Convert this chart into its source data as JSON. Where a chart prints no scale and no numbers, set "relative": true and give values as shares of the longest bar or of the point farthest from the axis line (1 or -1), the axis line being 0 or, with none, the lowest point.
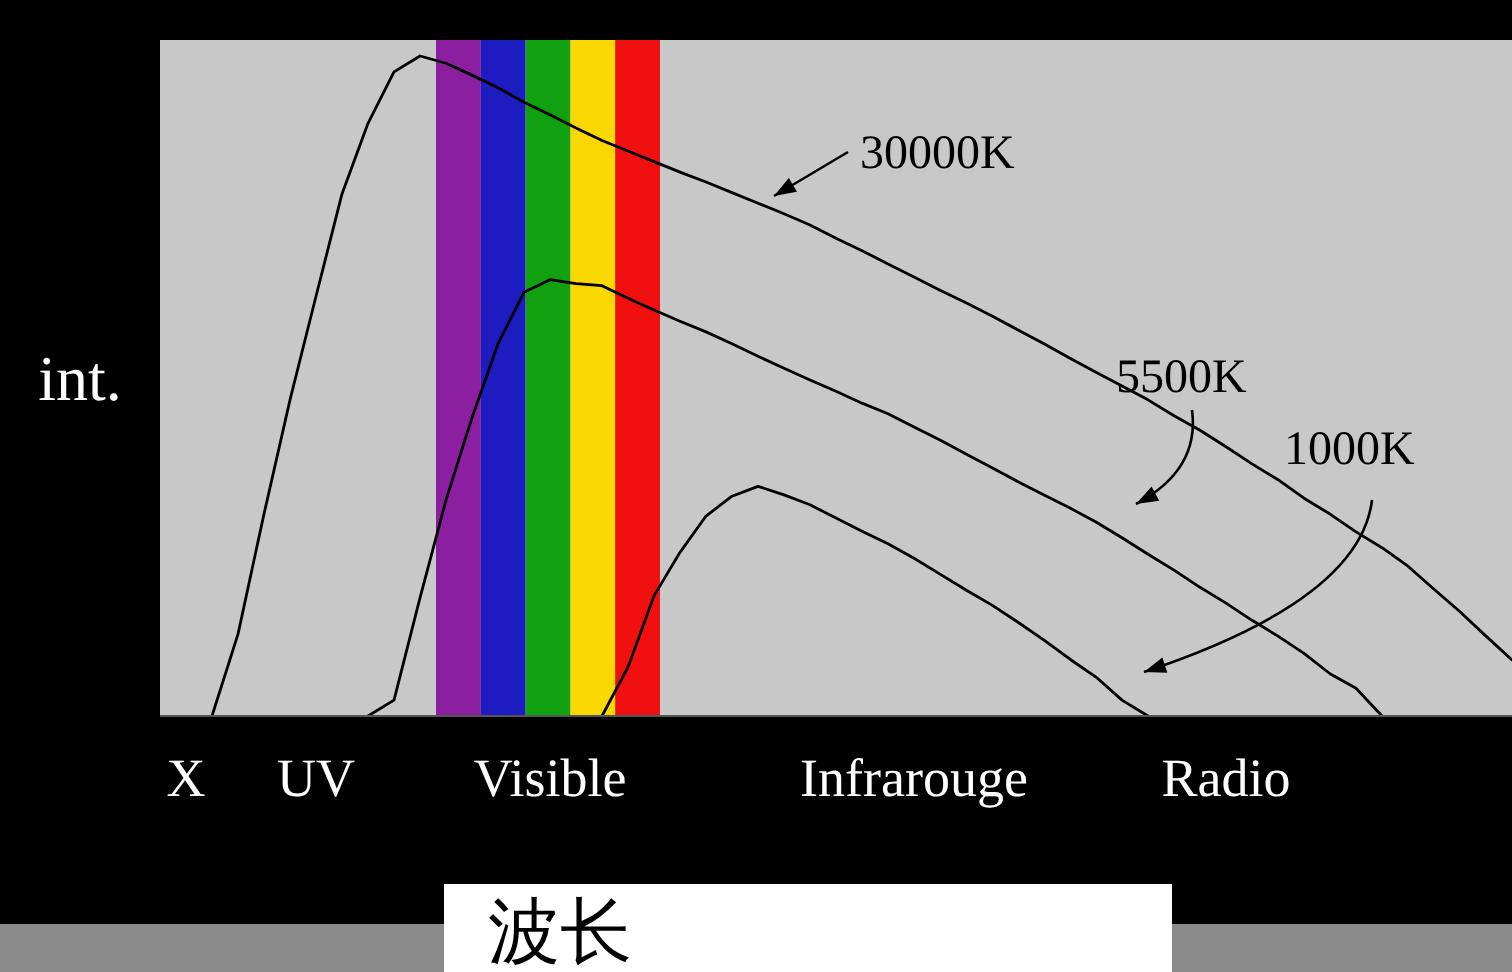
{
  "chart_data": {
    "type": "line",
    "relative": true,
    "xlabel": "波长",
    "ylabel": "int.",
    "categories": [
      null,
      "X",
      null,
      null,
      null,
      null,
      "UV",
      null,
      null,
      null,
      null,
      null,
      null,
      null,
      null,
      "Visible",
      null,
      null,
      null,
      null,
      null,
      null,
      null,
      null,
      null,
      null,
      null,
      null,
      null,
      "Infrarouge",
      null,
      null,
      null,
      null,
      null,
      null,
      null,
      null,
      null,
      null,
      null,
      "Radio",
      null,
      null,
      null,
      null,
      null,
      null,
      null,
      null,
      null,
      null,
      null
    ],
    "series": [
      {
        "color": "#000000",
        "values": [
          null,
          null,
          0,
          0.124,
          0.306,
          0.479,
          0.636,
          0.791,
          0.898,
          0.976,
          1,
          0.989,
          0.971,
          0.952,
          0.93,
          0.911,
          0.891,
          0.872,
          0.856,
          0.84,
          0.824,
          0.809,
          0.793,
          0.777,
          0.761,
          0.744,
          0.724,
          0.705,
          0.685,
          0.665,
          0.645,
          0.626,
          0.606,
          0.585,
          0.564,
          0.542,
          0.521,
          0.5,
          0.479,
          0.455,
          0.433,
          0.408,
          0.382,
          0.358,
          0.33,
          0.306,
          0.279,
          0.255,
          0.227,
          0.192,
          0.158,
          0.121,
          0.085
        ]
      },
      {
        "color": "#000000",
        "values": [
          null,
          null,
          null,
          null,
          null,
          null,
          null,
          null,
          0,
          0.024,
          0.179,
          0.327,
          0.452,
          0.564,
          0.642,
          0.661,
          0.655,
          0.652,
          0.633,
          0.615,
          0.598,
          0.582,
          0.564,
          0.545,
          0.527,
          0.509,
          0.492,
          0.474,
          0.458,
          0.438,
          0.418,
          0.397,
          0.376,
          0.355,
          0.335,
          0.315,
          0.294,
          0.27,
          0.245,
          0.221,
          0.195,
          0.171,
          0.145,
          0.121,
          0.095,
          0.064,
          0.042,
          0,
          null,
          null,
          null,
          null,
          null
        ]
      },
      {
        "color": "#000000",
        "values": [
          null,
          null,
          null,
          null,
          null,
          null,
          null,
          null,
          null,
          null,
          null,
          null,
          null,
          null,
          null,
          null,
          null,
          0,
          0.074,
          0.182,
          0.248,
          0.303,
          0.333,
          0.348,
          0.335,
          0.32,
          0.3,
          0.28,
          0.261,
          0.239,
          0.215,
          0.191,
          0.168,
          0.142,
          0.115,
          0.086,
          0.059,
          0.024,
          0,
          null,
          null,
          null,
          null,
          null,
          null,
          null,
          null,
          null,
          null,
          null,
          null,
          null,
          null
        ]
      }
    ],
    "annotations": [
      "30000K",
      "5500K",
      "1000K"
    ],
    "grid": false
  }
}
